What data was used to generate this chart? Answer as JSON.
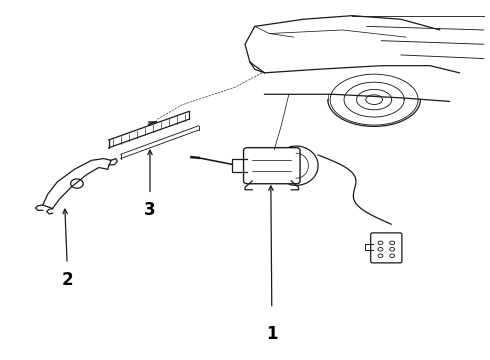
{
  "background_color": "#ffffff",
  "line_color": "#1a1a1a",
  "label_color": "#000000",
  "fig_width": 4.9,
  "fig_height": 3.6,
  "dpi": 100,
  "labels": {
    "1": [
      0.555,
      0.07
    ],
    "2": [
      0.135,
      0.22
    ],
    "3": [
      0.305,
      0.415
    ]
  }
}
